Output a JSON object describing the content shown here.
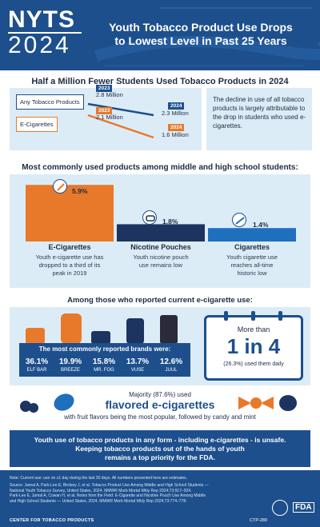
{
  "header": {
    "logo_nyts": "NYTS",
    "logo_year": "2024",
    "title_line1": "Youth Tobacco Product Use Drops",
    "title_line2": "to Lowest Level in Past 25 Years"
  },
  "section1": {
    "heading": "Half a Million Fewer Students Used Tobacco Products in 2024",
    "note": "The decline in use of all tobacco products is largely attributable to the drop in students who used e-cigarettes.",
    "series": [
      {
        "label": "Any Tobacco Products",
        "year_a": "2023",
        "value_a": "2.8 Million",
        "year_b": "2024",
        "value_b": "2.3 Million",
        "color": "#1d4f8c"
      },
      {
        "label": "E-Cigarettes",
        "year_a": "2023",
        "value_a": "2.1 Million",
        "year_b": "2024",
        "value_b": "1.6 Million",
        "color": "#e8792b"
      }
    ]
  },
  "section2": {
    "heading": "Most commonly used products among middle and high school students:",
    "bars": [
      {
        "label": "E-Cigarettes",
        "pct": "5.9%",
        "desc1": "Youth e-cigarette use has",
        "desc2": "dropped to a third of its",
        "desc3": "peak in 2019",
        "icon": "vape-icon",
        "color": "#e8792b"
      },
      {
        "label": "Nicotine Pouches",
        "pct": "1.8%",
        "desc1": "Youth nicotine pouch",
        "desc2": "use remains low",
        "desc3": "",
        "icon": "pouch-icon",
        "color": "#1d3461"
      },
      {
        "label": "Cigarettes",
        "pct": "1.4%",
        "desc1": "Youth cigarette use",
        "desc2": "reaches all-time",
        "desc3": "historic low",
        "icon": "cigarette-icon",
        "color": "#1f6fbf"
      }
    ]
  },
  "chart_data": {
    "type": "bar",
    "categories": [
      "E-Cigarettes",
      "Nicotine Pouches",
      "Cigarettes"
    ],
    "values": [
      5.9,
      1.8,
      1.4
    ],
    "title": "Most commonly used products among middle and high school students:",
    "ylim": [
      0,
      6
    ]
  },
  "section3": {
    "heading": "Among those who reported current e-cigarette use:",
    "brands_title": "The most commonly reported brands were:",
    "brands": [
      {
        "pct": "36.1%",
        "name": "ELF BAR"
      },
      {
        "pct": "19.9%",
        "name": "BREEZE"
      },
      {
        "pct": "15.8%",
        "name": "MR. FOG"
      },
      {
        "pct": "13.7%",
        "name": "VUSE"
      },
      {
        "pct": "12.6%",
        "name": "JUUL"
      }
    ],
    "calendar": {
      "more_than": "More than",
      "big": "1 in 4",
      "sub": "(26.3%) used them daily"
    },
    "majority": "Majority (87.6%) used",
    "flavored": "flavored e-cigarettes",
    "fruit_line": "with fruit flavors being the most popular, followed by candy and mint"
  },
  "callout": {
    "line1": "Youth use of tobacco products in any form - including e-cigarettes - is unsafe.",
    "line2": "Keeping tobacco products out of the hands of youth",
    "line3": "remains a top priority for the FDA."
  },
  "footer": {
    "note": "Note: Current use: use on ≥1 day during the last 30 days. All numbers presented here are estimates.",
    "source1": "Source: Jamal A, Park-Lee E, Birdsey J, et al. Tobacco Product Use Among Middle and High School Students —",
    "source2": "National Youth Tobacco Survey, United States, 2024. MMWR Morb Mortal Wkly Rep 2024;73:917–924.",
    "source3": "Park-Lee E, Jamal A, Cowan H, et al. Notes from the Field: E-Cigarette and Nicotine Pouch Use Among Middle",
    "source4": "and High School Students — United States, 2024. MMWR Morb Mortal Wkly Rep 2024;73:774–778.",
    "ctp": "CENTER FOR TOBACCO PRODUCTS",
    "code": "CTP-280",
    "fda": "FDA"
  },
  "colors": {
    "navy": "#1d4f8c",
    "orange": "#e8792b",
    "light_blue": "#dcecf6",
    "dark_navy": "#1d3461",
    "blue": "#1f6fbf"
  }
}
